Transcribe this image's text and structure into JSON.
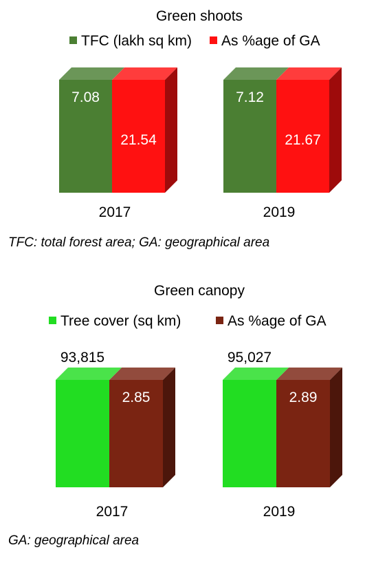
{
  "chart_data": [
    {
      "type": "bar",
      "title": "Green shoots",
      "categories": [
        "2017",
        "2019"
      ],
      "series": [
        {
          "name": "TFC (lakh sq km)",
          "values": [
            7.08,
            7.12
          ],
          "labels": [
            "7.08",
            "7.12"
          ],
          "color": "#4b7f33"
        },
        {
          "name": "As %age of GA",
          "values": [
            21.54,
            21.67
          ],
          "labels": [
            "21.54",
            "21.67"
          ],
          "color": "#ff1111"
        }
      ],
      "footnote": "TFC: total forest area; GA: geographical area"
    },
    {
      "type": "bar",
      "title": "Green canopy",
      "categories": [
        "2017",
        "2019"
      ],
      "series": [
        {
          "name": "Tree cover (sq km)",
          "values": [
            93815,
            95027
          ],
          "labels": [
            "93,815",
            "95,027"
          ],
          "color": "#22dd22"
        },
        {
          "name": "As %age of GA",
          "values": [
            2.85,
            2.89
          ],
          "labels": [
            "2.85",
            "2.89"
          ],
          "color": "#7a2412"
        }
      ],
      "footnote": "GA: geographical area"
    }
  ]
}
